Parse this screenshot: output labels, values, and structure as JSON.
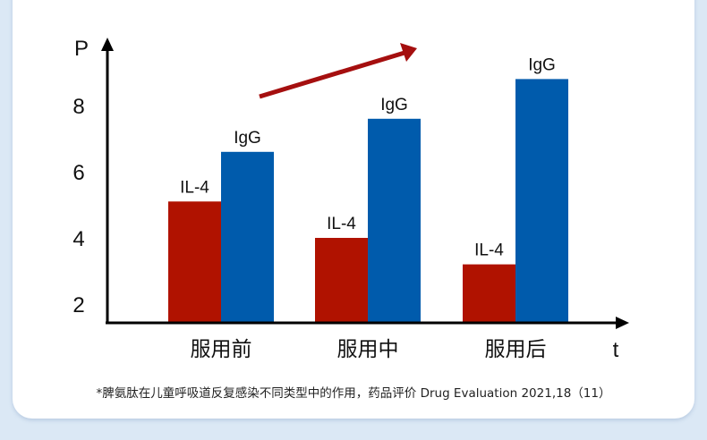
{
  "chart_data": {
    "type": "bar",
    "title": "",
    "xlabel": "t",
    "ylabel": "P",
    "categories": [
      "服用前",
      "服用中",
      "服用后"
    ],
    "series": [
      {
        "name": "IL-4",
        "color": "#b01200",
        "values": [
          5.1,
          4.0,
          3.2
        ]
      },
      {
        "name": "IgG",
        "color": "#005bac",
        "values": [
          6.6,
          7.6,
          8.8
        ]
      }
    ],
    "yticks": [
      "2",
      "4",
      "6",
      "8"
    ],
    "ylim": [
      1.4,
      10
    ],
    "annotation": "upward trend arrow",
    "grid": false
  },
  "footnote": "*脾氨肽在儿童呼吸道反复感染不同类型中的作用，药品评价 Drug Evaluation 2021,18（11）"
}
